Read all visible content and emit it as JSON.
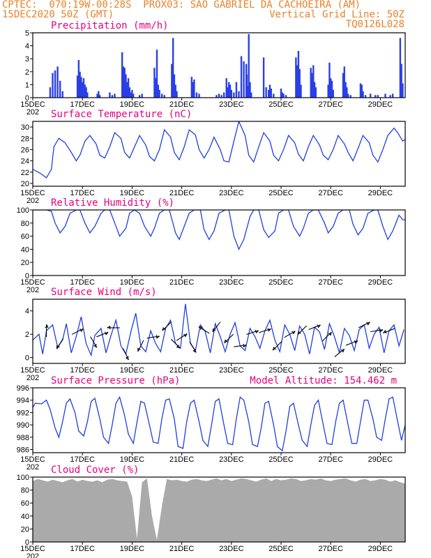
{
  "colors": {
    "header": "#e8822a",
    "panel_title": "#e6007e",
    "line": "#1f3fe0",
    "bar": "#2a3fe6",
    "cloud": "#aaaaaa",
    "wind_arrow": "#000000"
  },
  "header": {
    "line1_left": "CPTEC:  070:19W-00:28S  PROX03: SAO GABRIEL DA CACHOEIRA (AM)",
    "line2_left": "15DEC2020 50Z (GMT)",
    "line2_right": "Vertical Grid Line: 50Z",
    "line3_right": "TQ0126L028"
  },
  "x_axis": {
    "tick_labels": [
      "15DEC",
      "17DEC",
      "19DEC",
      "21DEC",
      "23DEC",
      "25DEC",
      "27DEC",
      "29DEC"
    ],
    "tick_days": [
      0,
      2,
      4,
      6,
      8,
      10,
      12,
      14
    ],
    "year_label": "202",
    "range_days": [
      0,
      15
    ]
  },
  "chart_data": [
    {
      "type": "bar",
      "title": "Precipitation (mm/h)",
      "ylim": [
        0,
        5
      ],
      "yticks": [
        0,
        1,
        2,
        3,
        4,
        5
      ],
      "x": [
        0.7,
        0.8,
        0.9,
        1.0,
        1.1,
        1.2,
        1.8,
        1.85,
        1.9,
        1.95,
        2.0,
        2.05,
        2.1,
        2.15,
        2.2,
        2.6,
        2.65,
        2.7,
        3.1,
        3.2,
        3.3,
        3.6,
        3.65,
        3.7,
        3.75,
        3.8,
        3.85,
        3.9,
        3.95,
        4.0,
        4.05,
        4.3,
        4.4,
        4.9,
        4.95,
        5.0,
        5.05,
        5.1,
        5.2,
        5.3,
        5.6,
        5.65,
        5.7,
        5.75,
        5.8,
        6.4,
        6.45,
        6.5,
        6.6,
        6.7,
        7.4,
        7.5,
        7.6,
        7.7,
        7.8,
        7.85,
        7.9,
        7.95,
        8.0,
        8.1,
        8.2,
        8.3,
        8.4,
        8.5,
        8.6,
        8.62,
        8.65,
        8.7,
        8.75,
        8.8,
        9.3,
        9.4,
        9.5,
        9.55,
        9.6,
        9.7,
        10.0,
        10.05,
        10.1,
        10.2,
        10.6,
        10.65,
        10.7,
        10.75,
        10.8,
        11.2,
        11.25,
        11.3,
        11.35,
        11.4,
        11.9,
        11.95,
        12.0,
        12.05,
        12.1,
        12.5,
        12.55,
        12.6,
        12.65,
        12.7,
        12.8,
        13.2,
        13.25,
        13.3,
        13.4,
        13.6,
        13.8,
        13.9,
        14.2,
        14.4,
        14.5,
        14.8,
        14.85,
        14.9
      ],
      "values": [
        0.8,
        1.9,
        2.1,
        2.4,
        1.3,
        0.5,
        1.7,
        2.9,
        2.0,
        1.6,
        1.2,
        1.5,
        1.0,
        0.8,
        0.4,
        0.3,
        0.5,
        0.2,
        0.4,
        0.2,
        0.3,
        3.5,
        2.4,
        2.3,
        1.8,
        1.2,
        1.5,
        0.8,
        0.4,
        0.6,
        0.3,
        0.2,
        0.3,
        2.3,
        1.5,
        3.7,
        1.0,
        0.6,
        0.3,
        0.2,
        2.6,
        4.6,
        1.8,
        1.0,
        0.5,
        1.6,
        1.2,
        1.4,
        0.4,
        0.3,
        0.2,
        0.3,
        0.2,
        0.4,
        1.5,
        0.8,
        1.2,
        1.0,
        0.6,
        0.4,
        1.2,
        0.5,
        3.2,
        2.8,
        2.6,
        1.8,
        0.9,
        4.9,
        1.2,
        0.4,
        3.1,
        0.8,
        0.6,
        1.0,
        0.7,
        0.3,
        0.7,
        0.4,
        0.3,
        0.2,
        3.1,
        2.5,
        3.6,
        2.2,
        1.0,
        2.3,
        1.9,
        2.5,
        1.2,
        0.8,
        1.0,
        2.7,
        1.5,
        1.3,
        0.6,
        1.9,
        2.4,
        1.2,
        0.8,
        0.3,
        0.2,
        1.1,
        1.0,
        0.5,
        0.2,
        0.3,
        0.2,
        0.2,
        0.3,
        0.2,
        0.3,
        4.6,
        2.6,
        1.1
      ]
    },
    {
      "type": "line",
      "title": "Surface Temperature (nC)",
      "ylim": [
        19.5,
        31
      ],
      "yticks": [
        20,
        22,
        24,
        26,
        28,
        30
      ],
      "x": [
        0.0,
        0.3,
        0.55,
        0.75,
        0.85,
        1.05,
        1.3,
        1.55,
        1.75,
        1.9,
        2.1,
        2.3,
        2.55,
        2.7,
        2.9,
        3.1,
        3.3,
        3.55,
        3.7,
        3.9,
        4.1,
        4.3,
        4.55,
        4.7,
        4.9,
        5.1,
        5.3,
        5.55,
        5.7,
        5.9,
        6.1,
        6.3,
        6.55,
        6.7,
        6.9,
        7.1,
        7.3,
        7.55,
        7.7,
        7.9,
        8.1,
        8.3,
        8.55,
        8.7,
        8.9,
        9.1,
        9.3,
        9.55,
        9.7,
        9.9,
        10.1,
        10.3,
        10.55,
        10.7,
        10.9,
        11.1,
        11.3,
        11.55,
        11.7,
        11.9,
        12.1,
        12.3,
        12.55,
        12.7,
        12.9,
        13.1,
        13.3,
        13.55,
        13.7,
        13.9,
        14.1,
        14.3,
        14.55,
        14.7,
        14.9,
        15.0
      ],
      "values": [
        22.5,
        21.8,
        21.0,
        22.5,
        26.5,
        28.0,
        27.2,
        25.5,
        24.0,
        25.0,
        27.5,
        28.5,
        27.0,
        25.0,
        24.5,
        26.5,
        29.0,
        28.0,
        25.5,
        24.5,
        26.5,
        28.5,
        26.8,
        24.8,
        24.0,
        26.0,
        29.5,
        28.2,
        25.5,
        24.2,
        26.5,
        29.5,
        28.6,
        26.0,
        24.5,
        26.0,
        28.2,
        26.0,
        24.0,
        23.8,
        27.5,
        31.0,
        28.5,
        25.0,
        23.8,
        26.5,
        29.0,
        27.5,
        25.0,
        24.0,
        26.0,
        28.5,
        27.2,
        25.2,
        24.0,
        26.5,
        28.5,
        26.8,
        25.0,
        24.2,
        26.0,
        28.5,
        27.0,
        25.5,
        24.0,
        26.2,
        28.5,
        27.2,
        25.0,
        23.8,
        26.0,
        28.5,
        29.8,
        29.0,
        27.5,
        27.8
      ]
    },
    {
      "type": "line",
      "title": "Relative Humidity (%)",
      "ylim": [
        0,
        100
      ],
      "yticks": [
        0,
        20,
        40,
        60,
        80,
        100
      ],
      "x": [
        0.0,
        0.2,
        0.4,
        0.55,
        0.75,
        0.9,
        1.1,
        1.3,
        1.5,
        1.75,
        1.9,
        2.1,
        2.3,
        2.5,
        2.75,
        2.9,
        3.1,
        3.3,
        3.5,
        3.75,
        3.9,
        4.1,
        4.3,
        4.5,
        4.75,
        4.9,
        5.1,
        5.3,
        5.5,
        5.75,
        5.9,
        6.1,
        6.3,
        6.5,
        6.75,
        6.9,
        7.1,
        7.3,
        7.5,
        7.75,
        7.9,
        8.1,
        8.3,
        8.5,
        8.75,
        8.9,
        9.1,
        9.3,
        9.5,
        9.75,
        9.9,
        10.1,
        10.3,
        10.5,
        10.75,
        10.9,
        11.1,
        11.3,
        11.5,
        11.75,
        11.9,
        12.1,
        12.3,
        12.5,
        12.75,
        12.9,
        13.1,
        13.3,
        13.5,
        13.75,
        13.9,
        14.1,
        14.3,
        14.5,
        14.75,
        14.9,
        15.0
      ],
      "values": [
        100,
        100,
        100,
        100,
        98,
        80,
        65,
        75,
        95,
        100,
        100,
        80,
        65,
        75,
        95,
        100,
        100,
        80,
        60,
        72,
        95,
        100,
        95,
        75,
        60,
        72,
        95,
        100,
        100,
        65,
        55,
        75,
        95,
        100,
        100,
        70,
        55,
        68,
        95,
        100,
        100,
        60,
        40,
        55,
        90,
        100,
        100,
        70,
        58,
        68,
        95,
        100,
        100,
        75,
        60,
        72,
        95,
        100,
        100,
        80,
        65,
        75,
        95,
        100,
        100,
        78,
        62,
        72,
        95,
        100,
        100,
        75,
        55,
        68,
        92,
        85,
        85
      ]
    },
    {
      "type": "line",
      "title": "Surface Wind (m/s)",
      "ylim": [
        -0.5,
        5
      ],
      "yticks": [
        0,
        2,
        4
      ],
      "x": [
        0.0,
        0.25,
        0.4,
        0.55,
        0.8,
        1.0,
        1.2,
        1.35,
        1.55,
        1.75,
        1.95,
        2.15,
        2.35,
        2.5,
        2.75,
        2.95,
        3.15,
        3.35,
        3.55,
        3.75,
        3.95,
        4.15,
        4.35,
        4.55,
        4.75,
        4.95,
        5.15,
        5.35,
        5.55,
        5.75,
        5.95,
        6.15,
        6.35,
        6.55,
        6.75,
        6.95,
        7.15,
        7.35,
        7.55,
        7.75,
        7.95,
        8.15,
        8.35,
        8.55,
        8.75,
        8.95,
        9.15,
        9.35,
        9.55,
        9.75,
        9.95,
        10.15,
        10.35,
        10.55,
        10.75,
        10.95,
        11.15,
        11.35,
        11.55,
        11.75,
        11.95,
        12.15,
        12.35,
        12.55,
        12.75,
        12.95,
        13.15,
        13.35,
        13.55,
        13.75,
        13.95,
        14.15,
        14.35,
        14.55,
        14.75,
        14.95
      ],
      "values": [
        1.5,
        2.0,
        0.3,
        2.3,
        2.8,
        0.9,
        1.5,
        2.9,
        0.4,
        1.8,
        3.5,
        1.2,
        0.2,
        1.9,
        2.5,
        0.4,
        1.9,
        3.2,
        1.0,
        0.3,
        2.2,
        3.8,
        1.0,
        0.5,
        2.3,
        1.2,
        0.5,
        2.5,
        3.2,
        1.2,
        0.8,
        4.6,
        1.2,
        0.6,
        2.8,
        2.2,
        0.4,
        2.9,
        1.8,
        0.5,
        2.0,
        3.0,
        1.0,
        0.6,
        2.5,
        1.8,
        0.8,
        2.3,
        3.2,
        1.5,
        0.5,
        2.8,
        2.0,
        0.6,
        2.7,
        2.0,
        0.3,
        2.6,
        2.2,
        0.7,
        2.9,
        1.8,
        0.4,
        2.5,
        1.9,
        0.6,
        2.4,
        2.8,
        0.8,
        2.0,
        2.6,
        0.4,
        2.3,
        2.8,
        1.0,
        2.4
      ],
      "arrows": {
        "x": [
          0.55,
          1.1,
          1.8,
          2.45,
          2.8,
          3.25,
          3.75,
          4.35,
          4.85,
          5.4,
          5.75,
          6.0,
          6.45,
          6.9,
          7.4,
          7.9,
          8.35,
          8.85,
          9.35,
          9.85,
          10.35,
          10.85,
          11.35,
          11.85,
          12.35,
          12.85,
          13.35,
          13.85,
          14.35
        ],
        "u": [
          0.0,
          -0.3,
          0.6,
          0.3,
          0.5,
          -0.6,
          0.3,
          -0.3,
          0.6,
          -0.5,
          0.6,
          0.6,
          0.3,
          -0.5,
          -0.3,
          -0.4,
          0.7,
          0.6,
          0.6,
          -0.4,
          0.5,
          -0.3,
          0.5,
          0.5,
          0.6,
          0.5,
          0.6,
          0.6,
          -0.5
        ],
        "v": [
          0.6,
          -0.5,
          0.3,
          -0.5,
          0.2,
          0.0,
          -0.6,
          -0.6,
          0.1,
          -0.5,
          -0.6,
          0.4,
          -0.5,
          0.3,
          -0.4,
          -0.4,
          0.1,
          0.2,
          0.2,
          -0.4,
          0.3,
          -0.3,
          0.2,
          0.5,
          0.5,
          0.2,
          0.3,
          0.1,
          -0.2
        ]
      }
    },
    {
      "type": "line",
      "title": "Surface Pressure (hPa)",
      "annotation": "Model Altitude: 154.462 m",
      "ylim": [
        985.5,
        996
      ],
      "yticks": [
        986,
        988,
        990,
        992,
        994,
        996
      ],
      "x": [
        0.0,
        0.1,
        0.35,
        0.55,
        0.7,
        0.9,
        1.05,
        1.2,
        1.35,
        1.5,
        1.7,
        1.85,
        2.05,
        2.2,
        2.35,
        2.5,
        2.7,
        2.85,
        3.05,
        3.2,
        3.35,
        3.5,
        3.7,
        3.85,
        4.05,
        4.2,
        4.35,
        4.5,
        4.7,
        4.85,
        5.05,
        5.2,
        5.35,
        5.5,
        5.7,
        5.85,
        6.05,
        6.2,
        6.35,
        6.5,
        6.7,
        6.85,
        7.05,
        7.2,
        7.35,
        7.5,
        7.7,
        7.85,
        8.05,
        8.2,
        8.35,
        8.5,
        8.7,
        8.85,
        9.05,
        9.2,
        9.35,
        9.5,
        9.7,
        9.85,
        10.05,
        10.2,
        10.35,
        10.5,
        10.7,
        10.85,
        11.05,
        11.2,
        11.35,
        11.5,
        11.7,
        11.85,
        12.05,
        12.2,
        12.35,
        12.5,
        12.7,
        12.85,
        13.05,
        13.2,
        13.35,
        13.5,
        13.7,
        13.85,
        14.05,
        14.2,
        14.35,
        14.5,
        14.7,
        14.85,
        15.0
      ],
      "values": [
        992.8,
        993.5,
        993.4,
        994.0,
        992.5,
        989.5,
        988.0,
        990.5,
        993.5,
        994.2,
        992.0,
        989.0,
        988.2,
        990.5,
        993.8,
        994.3,
        991.0,
        988.0,
        987.0,
        990.0,
        993.5,
        994.5,
        991.5,
        988.5,
        987.0,
        990.5,
        993.8,
        993.5,
        990.0,
        987.2,
        987.0,
        991.0,
        994.0,
        994.2,
        991.0,
        986.5,
        986.2,
        990.5,
        993.5,
        994.0,
        990.5,
        987.5,
        986.5,
        990.0,
        993.8,
        994.2,
        990.0,
        987.0,
        986.8,
        991.0,
        994.5,
        994.0,
        990.5,
        986.8,
        986.5,
        989.5,
        993.5,
        993.8,
        990.0,
        986.5,
        985.8,
        989.0,
        993.0,
        993.5,
        990.0,
        987.5,
        986.5,
        990.0,
        993.2,
        994.0,
        990.0,
        987.0,
        986.8,
        990.5,
        993.5,
        994.0,
        990.0,
        987.0,
        987.0,
        990.5,
        994.0,
        994.0,
        991.0,
        988.0,
        987.5,
        991.0,
        994.2,
        994.5,
        990.5,
        987.5,
        990.0
      ]
    },
    {
      "type": "area",
      "title": "Cloud Cover (%)",
      "ylim": [
        0,
        100
      ],
      "yticks": [
        0,
        20,
        40,
        60,
        80,
        100
      ],
      "x": [
        0.0,
        0.2,
        0.4,
        0.6,
        0.8,
        1.0,
        1.2,
        1.4,
        1.6,
        1.8,
        2.0,
        2.2,
        2.4,
        2.6,
        2.8,
        3.0,
        3.2,
        3.4,
        3.6,
        3.8,
        4.0,
        4.2,
        4.4,
        4.6,
        4.8,
        5.0,
        5.2,
        5.4,
        5.6,
        5.8,
        6.0,
        6.2,
        6.4,
        6.6,
        6.8,
        7.0,
        7.2,
        7.4,
        7.6,
        7.8,
        8.0,
        8.2,
        8.4,
        8.6,
        8.8,
        9.0,
        9.2,
        9.4,
        9.6,
        9.8,
        10.0,
        10.2,
        10.4,
        10.6,
        10.8,
        11.0,
        11.2,
        11.4,
        11.6,
        11.8,
        12.0,
        12.2,
        12.4,
        12.6,
        12.8,
        13.0,
        13.2,
        13.4,
        13.6,
        13.8,
        14.0,
        14.2,
        14.4,
        14.6,
        14.8,
        15.0
      ],
      "values": [
        94,
        97,
        95,
        93,
        96,
        94,
        92,
        95,
        97,
        93,
        96,
        94,
        93,
        95,
        92,
        96,
        97,
        95,
        94,
        93,
        70,
        5,
        92,
        98,
        40,
        3,
        55,
        97,
        95,
        96,
        94,
        93,
        96,
        97,
        95,
        94,
        96,
        98,
        95,
        97,
        94,
        96,
        98,
        97,
        95,
        93,
        96,
        98,
        94,
        97,
        95,
        96,
        98,
        97,
        94,
        95,
        97,
        96,
        98,
        95,
        94,
        96,
        97,
        98,
        95,
        93,
        96,
        97,
        94,
        95,
        97,
        96,
        93,
        95,
        92,
        90
      ]
    }
  ]
}
